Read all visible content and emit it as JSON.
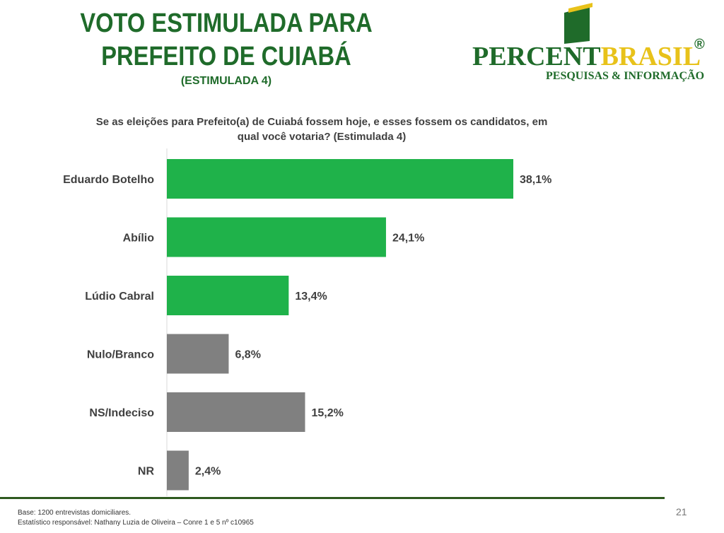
{
  "header": {
    "title_line1": "VOTO ESTIMULADA PARA",
    "title_line2": "PREFEITO DE  CUIABÁ",
    "subtitle": "(ESTIMULADA 4)"
  },
  "logo": {
    "text_part1": "PERCENT",
    "text_part2": "BRASIL",
    "registered": "®",
    "tagline": "PESQUISAS & INFORMAÇÃO"
  },
  "question": {
    "line1": "Se as eleições para Prefeito(a) de Cuiabá fossem hoje, e esses fossem os candidatos, em",
    "line2": "qual você votaria? (Estimulada 4)"
  },
  "colors": {
    "candidate_bar": "#1fb24a",
    "other_bar": "#808080",
    "title_green": "#1f6b2a"
  },
  "chart_data": {
    "type": "bar",
    "orientation": "horizontal",
    "categories": [
      "Eduardo Botelho",
      "Abílio",
      "Lúdio Cabral",
      "Nulo/Branco",
      "NS/Indeciso",
      "NR"
    ],
    "values": [
      38.1,
      24.1,
      13.4,
      6.8,
      15.2,
      2.4
    ],
    "value_labels": [
      "38,1%",
      "24,1%",
      "13,4%",
      "6,8%",
      "15,2%",
      "2,4%"
    ],
    "bar_colors": [
      "#1fb24a",
      "#1fb24a",
      "#1fb24a",
      "#808080",
      "#808080",
      "#808080"
    ],
    "grid": false,
    "legend": "none"
  },
  "footer": {
    "base": "Base: 1200 entrevistas domiciliares.",
    "statistician": "Estatístico responsável: Nathany Luzia de Oliveira – Conre 1 e 5 nº c10965",
    "page_number": "21"
  }
}
